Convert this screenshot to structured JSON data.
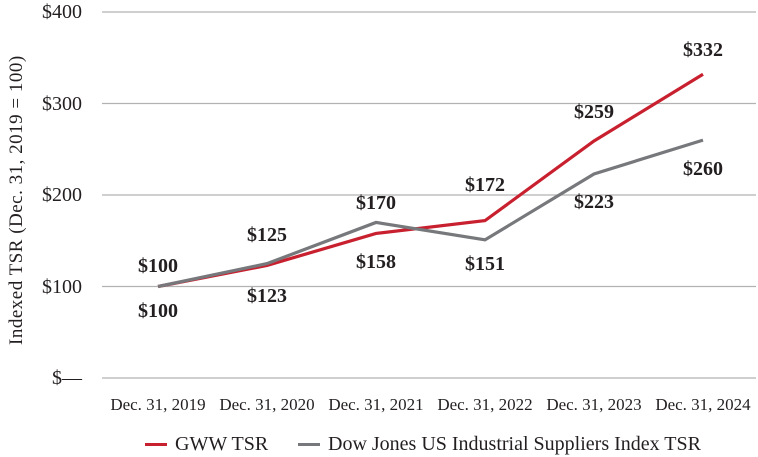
{
  "chart_data": {
    "type": "line",
    "title": "",
    "ylabel": "Indexed TSR (Dec. 31, 2019 = 100)",
    "x_categories": [
      "Dec. 31, 2019",
      "Dec. 31, 2020",
      "Dec. 31, 2021",
      "Dec. 31, 2022",
      "Dec. 31, 2023",
      "Dec. 31, 2024"
    ],
    "y_ticks": [
      {
        "label": "$400",
        "value": 400
      },
      {
        "label": "$300",
        "value": 300
      },
      {
        "label": "$200",
        "value": 200
      },
      {
        "label": "$100",
        "value": 100
      },
      {
        "label": "$—",
        "value": 0
      }
    ],
    "ylim": [
      0,
      400
    ],
    "grid": true,
    "legend_position": "bottom",
    "series": [
      {
        "name": "GWW TSR",
        "color": "#c8202e",
        "values": [
          100,
          123,
          158,
          172,
          259,
          332
        ],
        "labels": [
          "$100",
          "$123",
          "$158",
          "$172",
          "$259",
          "$332"
        ],
        "label_dy": [
          24,
          31,
          29,
          -36,
          -29,
          -24
        ]
      },
      {
        "name": "Dow Jones US Industrial Suppliers Index TSR",
        "color": "#77787b",
        "values": [
          100,
          125,
          170,
          151,
          223,
          260
        ],
        "labels": [
          "$100",
          "$125",
          "$170",
          "$151",
          "$223",
          "$260"
        ],
        "label_dy": [
          -21,
          -29,
          -19,
          24,
          28,
          29
        ]
      }
    ],
    "colors": {
      "gridline": "#b2b2b2",
      "text": "#231f20",
      "background": "#ffffff"
    }
  }
}
